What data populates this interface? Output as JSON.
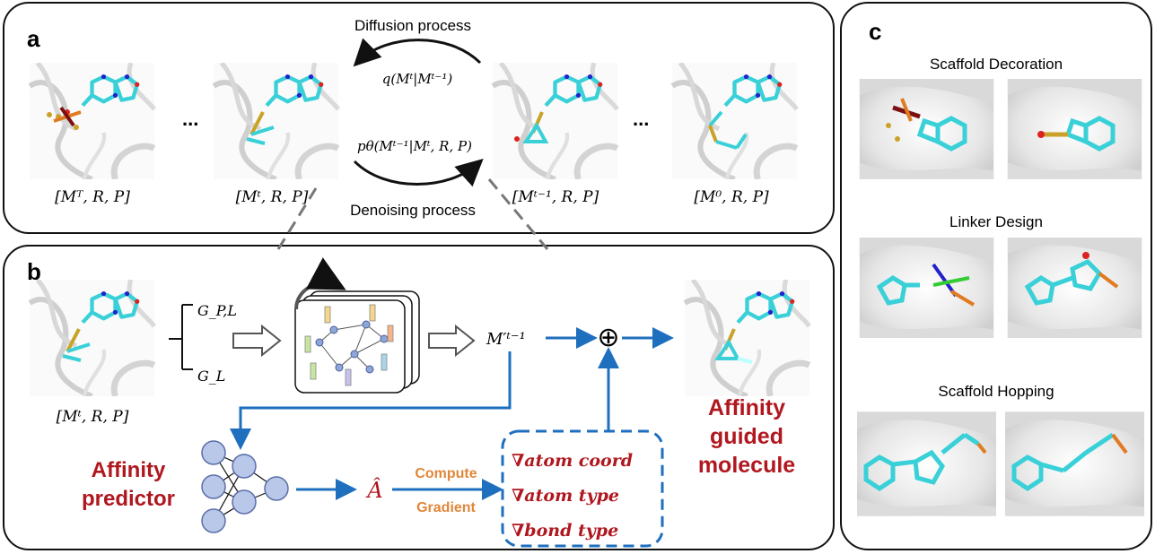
{
  "panels": {
    "a": {
      "letter": "a",
      "states": [
        "[Mᵀ, R, P]",
        "[Mᵗ, R, P]",
        "[Mᵗ⁻¹, R, P]",
        "[M⁰, R, P]"
      ],
      "ellipsis": "...",
      "diffusion_label": "Diffusion process",
      "denoising_label": "Denoising process",
      "forward_eq": "q(Mᵗ|Mᵗ⁻¹)",
      "reverse_eq": "pθ(Mᵗ⁻¹|Mᵗ, R, P)"
    },
    "b": {
      "letter": "b",
      "input_state": "[Mᵗ, R, P]",
      "graph_pl": "G_P,L",
      "graph_l": "G_L",
      "gnn_output": "M′ᵗ⁻¹",
      "predictor_label_line1": "Affinity",
      "predictor_label_line2": "predictor",
      "affinity_hat": "Â",
      "compute_label": "Compute",
      "gradient_label": "Gradient",
      "gradients": [
        "∇atom coord",
        "∇atom type",
        "∇bond type"
      ],
      "guided_line1": "Affinity",
      "guided_line2": "guided",
      "guided_line3": "molecule",
      "plus_symbol": "⊕"
    },
    "c": {
      "letter": "c",
      "sections": [
        "Scaffold Decoration",
        "Linker Design",
        "Scaffold Hopping"
      ]
    }
  },
  "colors": {
    "accent_blue": "#1f6fbf",
    "accent_red": "#b0171f",
    "accent_orange": "#e0873a",
    "molecule_cyan": "#39d0d8",
    "nitrogen_blue": "#2222cc",
    "oxygen_red": "#d22",
    "sulfur_gold": "#c9a227"
  }
}
